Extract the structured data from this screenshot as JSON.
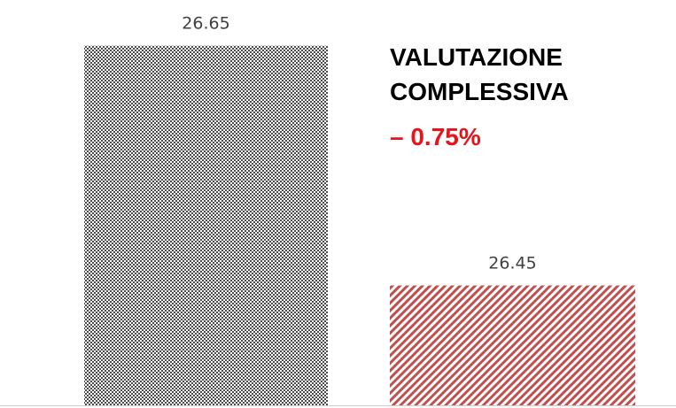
{
  "chart_data": {
    "type": "bar",
    "categories": [
      null,
      null
    ],
    "values": [
      26.65,
      26.45
    ],
    "colors": [
      "#4a4a4a",
      "#c0504d"
    ],
    "ylim": [
      26.35,
      26.68
    ],
    "annotations": [
      "VALUTAZIONE",
      "COMPLESSIVA",
      "– 0.75%"
    ]
  }
}
